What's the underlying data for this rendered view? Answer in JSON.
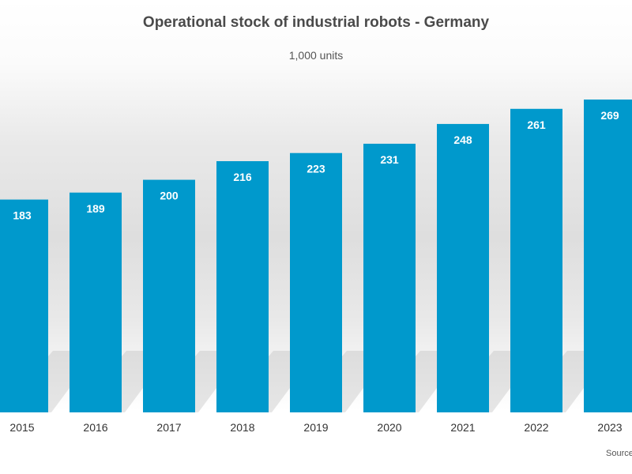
{
  "title": "Operational stock of industrial robots - Germany",
  "subtitle": "1,000 units",
  "source": "Source",
  "colors": {
    "bar": "#0099cc",
    "bar_label": "#ffffff",
    "axis_text": "#333333",
    "shadow": "#b8b8b8"
  },
  "chart_data": {
    "type": "bar",
    "title": "Operational stock of industrial robots - Germany",
    "subtitle": "1,000 units",
    "categories": [
      "2015",
      "2016",
      "2017",
      "2018",
      "2019",
      "2020",
      "2021",
      "2022",
      "2023"
    ],
    "values": [
      183,
      189,
      200,
      216,
      223,
      231,
      248,
      261,
      269
    ],
    "ylabel": "",
    "xlabel": "",
    "ylim": [
      0,
      269
    ],
    "grid": false,
    "data_labels": true,
    "legend": "none"
  }
}
